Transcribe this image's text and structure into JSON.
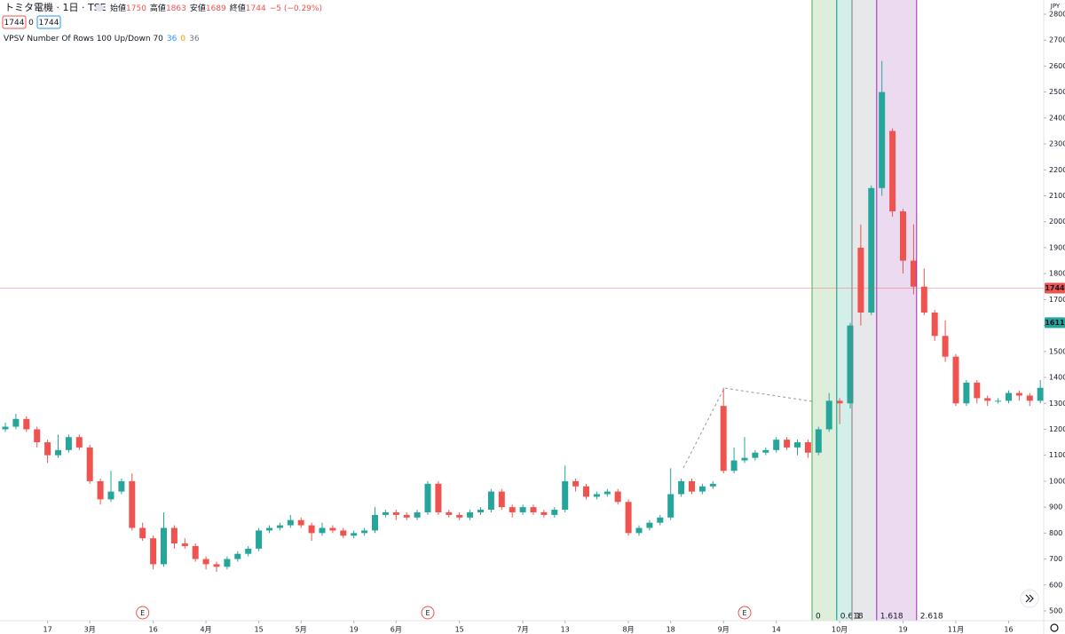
{
  "chart_data": {
    "type": "candlestick",
    "title": "トミタ電機 · 1日 · TSE",
    "ohlc": {
      "labels": [
        "始値",
        "高値",
        "安値",
        "終値"
      ],
      "values": [
        1750,
        1863,
        1689,
        1744
      ],
      "change": "−5 (−0.29%)"
    },
    "badges": [
      1744,
      0,
      1744
    ],
    "indicator": {
      "name": "VPSV Number Of Rows 100 Up/Down 70",
      "values": [
        36,
        0,
        36
      ],
      "colors": [
        "#2196f3",
        "#ff9800",
        "#787b86"
      ]
    },
    "currency": "JPY",
    "up_color": "#26a69a",
    "down_color": "#ef5350",
    "open": [
      1200,
      1210,
      1240,
      1200,
      1150,
      1100,
      1120,
      1170,
      1130,
      1000,
      930,
      960,
      1000,
      820,
      780,
      680,
      820,
      760,
      750,
      700,
      680,
      670,
      700,
      720,
      740,
      810,
      820,
      830,
      850,
      830,
      800,
      820,
      810,
      790,
      800,
      810,
      870,
      880,
      870,
      860,
      880,
      990,
      880,
      870,
      860,
      880,
      890,
      960,
      900,
      880,
      900,
      880,
      870,
      890,
      1000,
      980,
      940,
      950,
      960,
      920,
      800,
      820,
      840,
      860,
      950,
      1000,
      960,
      980,
      1290,
      1040,
      1080,
      1090,
      1110,
      1120,
      1160,
      1130,
      1150,
      1110,
      1200,
      1310,
      1300,
      1900,
      1650,
      2130,
      2350,
      2040,
      1850,
      1750,
      1650,
      1560,
      1480,
      1300,
      1380,
      1320,
      1310,
      1310,
      1340,
      1330,
      1310
    ],
    "high": [
      1225,
      1260,
      1250,
      1210,
      1160,
      1180,
      1180,
      1180,
      1140,
      1010,
      1040,
      1010,
      1030,
      840,
      790,
      880,
      830,
      780,
      760,
      710,
      690,
      710,
      730,
      750,
      820,
      830,
      840,
      870,
      860,
      840,
      840,
      830,
      820,
      810,
      820,
      900,
      890,
      890,
      880,
      890,
      1000,
      1000,
      890,
      880,
      890,
      900,
      970,
      970,
      910,
      910,
      910,
      890,
      900,
      1060,
      1010,
      990,
      960,
      970,
      970,
      930,
      830,
      850,
      870,
      1050,
      1010,
      1010,
      990,
      1000,
      1360,
      1130,
      1170,
      1120,
      1130,
      1170,
      1170,
      1160,
      1160,
      1210,
      1340,
      1320,
      1610,
      1990,
      2140,
      2620,
      2360,
      2050,
      1990,
      1820,
      1660,
      1620,
      1490,
      1390,
      1390,
      1330,
      1320,
      1350,
      1350,
      1340,
      1390
    ],
    "low": [
      1190,
      1200,
      1190,
      1130,
      1070,
      1090,
      1110,
      1120,
      990,
      910,
      920,
      950,
      810,
      770,
      660,
      670,
      740,
      740,
      690,
      660,
      650,
      660,
      690,
      710,
      730,
      800,
      810,
      820,
      820,
      770,
      790,
      800,
      780,
      780,
      790,
      800,
      860,
      850,
      850,
      850,
      870,
      870,
      860,
      850,
      850,
      870,
      880,
      890,
      860,
      870,
      870,
      860,
      860,
      880,
      960,
      930,
      930,
      940,
      910,
      790,
      790,
      810,
      830,
      850,
      940,
      950,
      950,
      970,
      1030,
      1030,
      1070,
      1080,
      1100,
      1110,
      1120,
      1100,
      1090,
      1100,
      1190,
      1220,
      1280,
      1600,
      1640,
      2100,
      2020,
      1800,
      1720,
      1640,
      1540,
      1460,
      1290,
      1290,
      1300,
      1290,
      1300,
      1300,
      1310,
      1290,
      1300
    ],
    "close": [
      1210,
      1240,
      1200,
      1150,
      1100,
      1120,
      1170,
      1130,
      1000,
      930,
      960,
      1000,
      820,
      780,
      680,
      820,
      760,
      750,
      700,
      680,
      670,
      700,
      720,
      740,
      810,
      820,
      830,
      850,
      830,
      800,
      820,
      810,
      790,
      800,
      810,
      870,
      880,
      870,
      860,
      880,
      990,
      880,
      870,
      860,
      880,
      890,
      960,
      900,
      880,
      900,
      880,
      870,
      890,
      1000,
      980,
      940,
      950,
      960,
      920,
      800,
      820,
      840,
      860,
      950,
      1000,
      960,
      980,
      990,
      1040,
      1080,
      1090,
      1110,
      1120,
      1160,
      1130,
      1150,
      1110,
      1200,
      1310,
      1300,
      1600,
      1650,
      2130,
      2500,
      2040,
      1850,
      1750,
      1650,
      1560,
      1480,
      1300,
      1380,
      1320,
      1310,
      1310,
      1340,
      1330,
      1310,
      1360
    ],
    "xticks": [
      {
        "value": 4,
        "label": "17"
      },
      {
        "value": 8,
        "label": "3月"
      },
      {
        "value": 14,
        "label": "16"
      },
      {
        "value": 19,
        "label": "4月"
      },
      {
        "value": 24,
        "label": "15"
      },
      {
        "value": 28,
        "label": "5月"
      },
      {
        "value": 33,
        "label": "19"
      },
      {
        "value": 37,
        "label": "6月"
      },
      {
        "value": 43,
        "label": "15"
      },
      {
        "value": 49,
        "label": "7月"
      },
      {
        "value": 53,
        "label": "13"
      },
      {
        "value": 59,
        "label": "8月"
      },
      {
        "value": 63,
        "label": "18"
      },
      {
        "value": 68,
        "label": "9月"
      },
      {
        "value": 73,
        "label": "14"
      },
      {
        "value": 79,
        "label": "10月"
      },
      {
        "value": 85,
        "label": "19"
      },
      {
        "value": 90,
        "label": "11月"
      },
      {
        "value": 95,
        "label": "16"
      }
    ],
    "ylim": [
      500,
      2800
    ],
    "yticks": [
      500,
      600,
      700,
      800,
      900,
      1000,
      1100,
      1200,
      1300,
      1400,
      1500,
      1600,
      1700,
      1800,
      1900,
      2000,
      2100,
      2200,
      2300,
      2400,
      2500,
      2600,
      2700,
      2800
    ],
    "price_lines": [
      {
        "value": 1744,
        "color": "#ef5350"
      },
      {
        "value": 1611,
        "color": "#26a69a"
      }
    ],
    "events": [
      {
        "value": 13,
        "label": "E"
      },
      {
        "value": 40,
        "label": "E"
      },
      {
        "value": 70,
        "label": "E"
      }
    ],
    "fib": {
      "levels": [
        0,
        0.618,
        1,
        1.618,
        2.618
      ],
      "colors": [
        "#4caf50",
        "#009688",
        "#787b86",
        "#9c27b0",
        "#9c27b0"
      ]
    }
  }
}
